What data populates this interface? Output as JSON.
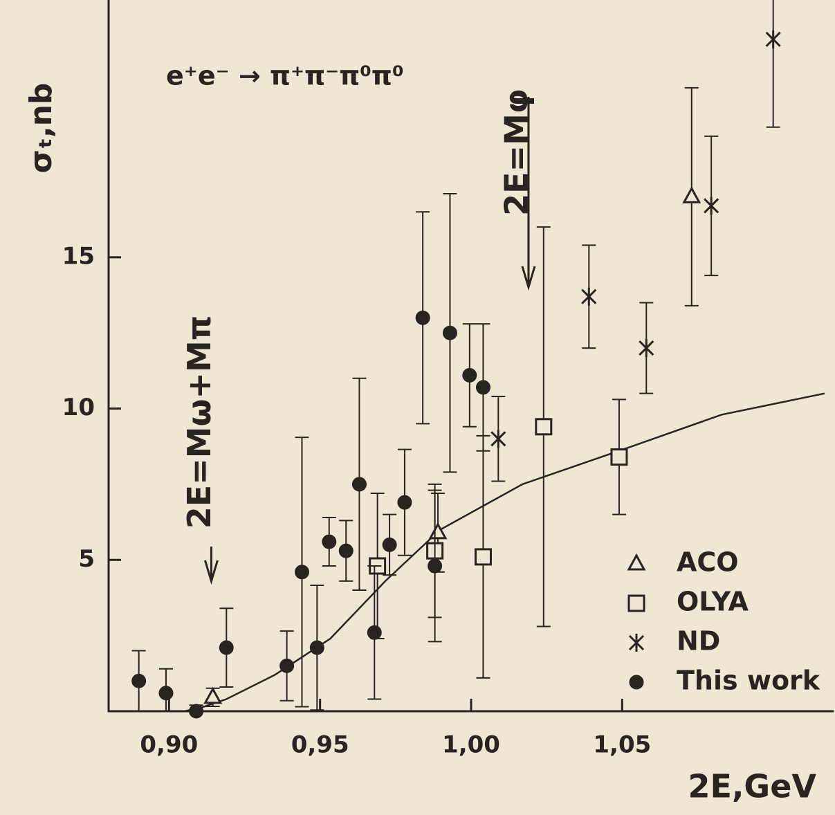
{
  "chart_data": {
    "type": "scatter",
    "title": "e⁺e⁻ → π⁺π⁻π⁰π⁰",
    "xlabel": "2E,GeV",
    "ylabel": "σₜ,nb",
    "xlim": [
      0.88,
      1.12
    ],
    "ylim": [
      0,
      23.5
    ],
    "xticks": [
      {
        "value": 0.9,
        "label": "0,90"
      },
      {
        "value": 0.95,
        "label": "0,95"
      },
      {
        "value": 1.0,
        "label": "1,00"
      },
      {
        "value": 1.05,
        "label": "1,05"
      }
    ],
    "yticks": [
      5,
      10,
      15
    ],
    "legend": "lower right",
    "color": "#2a2420",
    "series": [
      {
        "name": "ACO",
        "marker": "triangle",
        "x": [
          0.9145,
          0.989,
          1.073
        ],
        "values": [
          0.46,
          5.9,
          17.0
        ],
        "errors": [
          0.3,
          1.3,
          3.6
        ]
      },
      {
        "name": "OLYA",
        "marker": "square",
        "x": [
          0.969,
          0.988,
          1.004,
          1.024,
          1.049
        ],
        "values": [
          4.8,
          5.3,
          5.1,
          9.4,
          8.4
        ],
        "errors": [
          2.4,
          2.2,
          4.0,
          6.6,
          1.9
        ]
      },
      {
        "name": "ND",
        "marker": "star",
        "x": [
          1.009,
          1.039,
          1.058,
          1.0795,
          1.1
        ],
        "values": [
          9.0,
          13.7,
          12.0,
          16.7,
          22.2
        ],
        "errors": [
          1.4,
          1.7,
          1.5,
          2.3,
          2.9
        ]
      },
      {
        "name": "This work",
        "marker": "dot",
        "x": [
          0.89,
          0.899,
          0.909,
          0.919,
          0.939,
          0.944,
          0.949,
          0.953,
          0.9586,
          0.963,
          0.968,
          0.973,
          0.978,
          0.984,
          0.988,
          0.993,
          0.9995,
          1.004
        ],
        "values": [
          1.0,
          0.6,
          0.0,
          2.1,
          1.5,
          4.6,
          2.1,
          5.6,
          5.3,
          7.5,
          2.6,
          5.5,
          6.9,
          13.0,
          4.8,
          12.5,
          11.1,
          10.7
        ],
        "errors": [
          1.0,
          0.8,
          0.2,
          1.3,
          1.15,
          4.45,
          2.06,
          0.8,
          1.0,
          3.5,
          2.2,
          1.0,
          1.75,
          3.5,
          2.5,
          4.6,
          1.7,
          2.1
        ]
      }
    ],
    "curve": {
      "x": [
        0.905,
        0.91,
        0.919,
        0.935,
        0.9534,
        0.9716,
        0.9898,
        1.017,
        1.0489,
        1.083,
        1.117
      ],
      "values": [
        0.0,
        0.1,
        0.4,
        1.2,
        2.4,
        4.3,
        6.0,
        7.5,
        8.6,
        9.8,
        10.5
      ]
    },
    "annotations": [
      {
        "text": "2E=Mω+Mπ",
        "x": 0.914
      },
      {
        "text": "2E=Mφ",
        "x": 1.019
      }
    ]
  }
}
